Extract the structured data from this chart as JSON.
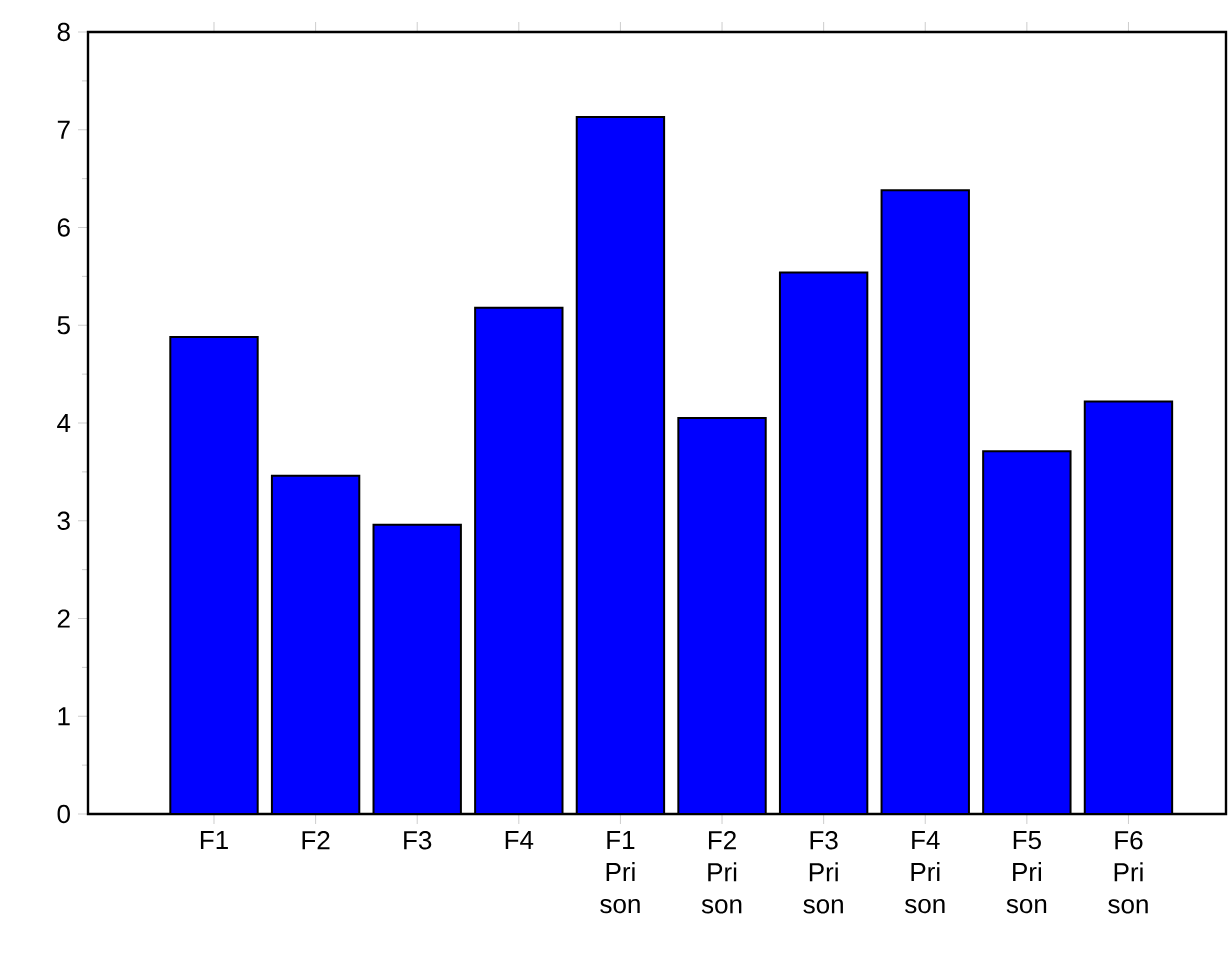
{
  "chart_data": {
    "type": "bar",
    "categories": [
      "F1",
      "F2",
      "F3",
      "F4",
      "F1 Pri son",
      "F2 Pri son",
      "F3 Pri son",
      "F4 Pri son",
      "F5 Pri son",
      "F6 Pri son"
    ],
    "values": [
      4.88,
      3.46,
      2.96,
      5.18,
      7.13,
      4.05,
      5.54,
      6.38,
      3.71,
      4.22
    ],
    "color": "#0000ff",
    "ylim": [
      0,
      8
    ],
    "yticks": [
      0,
      1,
      2,
      3,
      4,
      5,
      6,
      7,
      8
    ]
  }
}
